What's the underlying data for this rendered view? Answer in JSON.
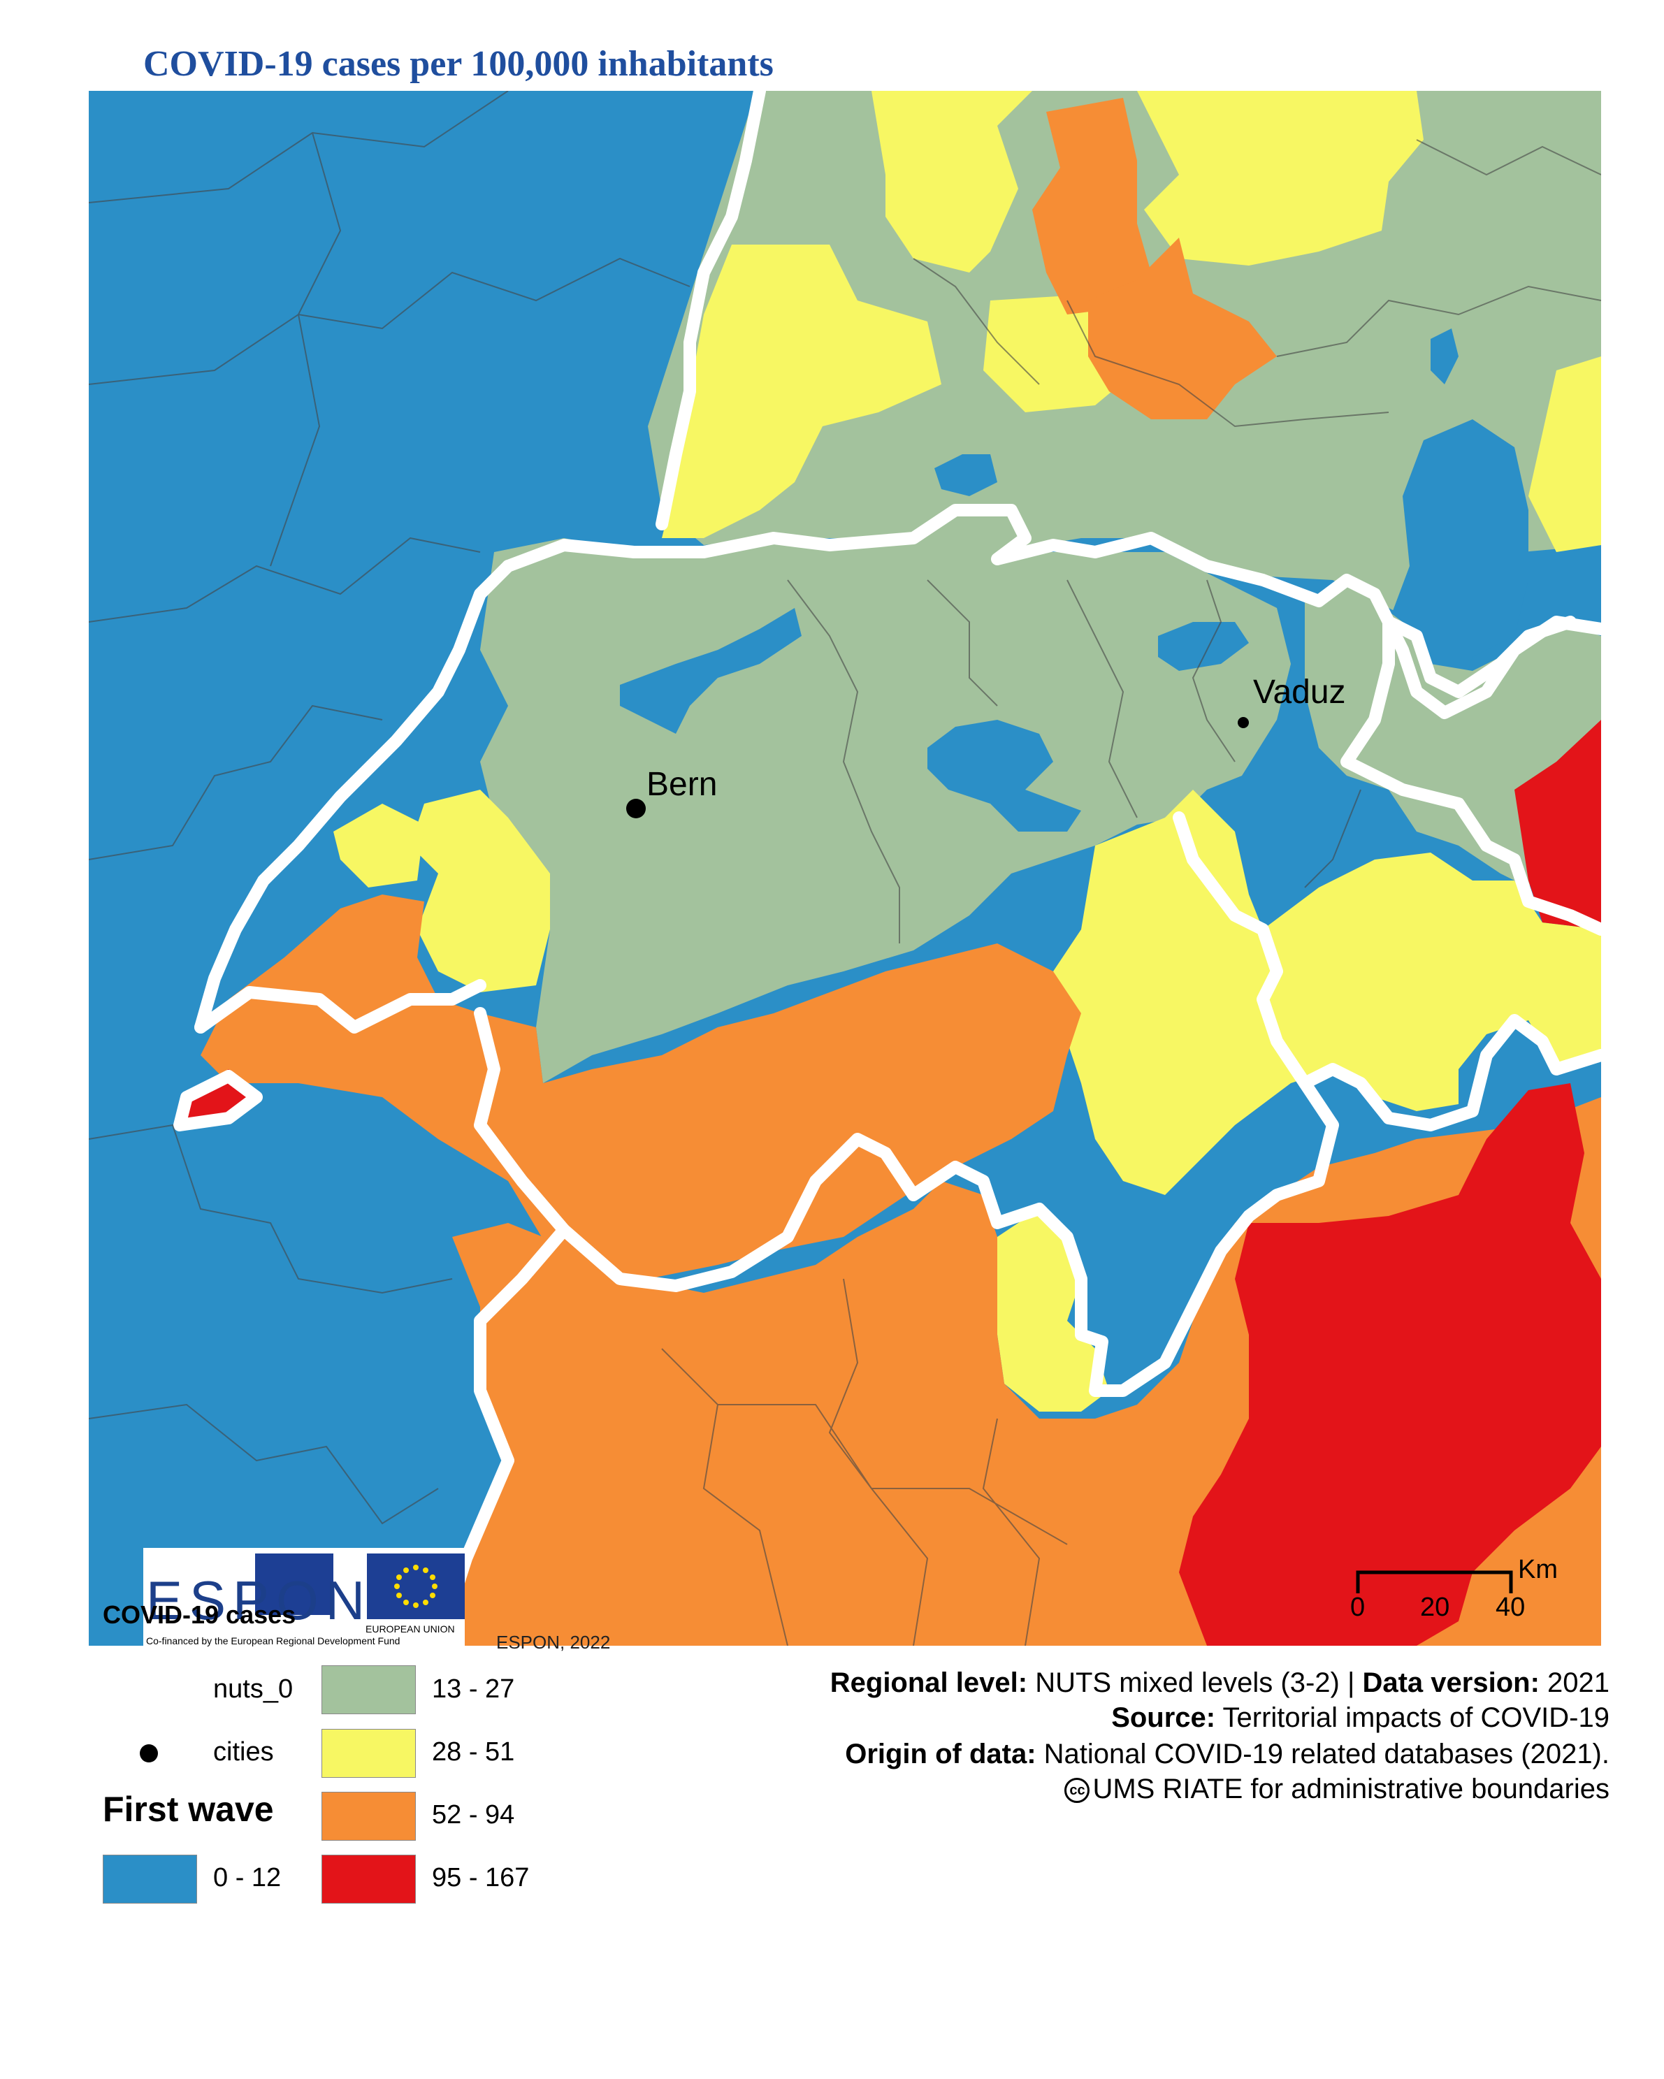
{
  "title": "COVID-19 cases per 100,000 inhabitants",
  "map": {
    "cities": [
      {
        "name": "Bern"
      },
      {
        "name": "Vaduz"
      }
    ],
    "scale_bar": {
      "unit": "Km",
      "ticks": [
        "0",
        "20",
        "40"
      ]
    },
    "colors": {
      "blue": "#2b8fc7",
      "green": "#a3c29d",
      "yellow": "#f7f763",
      "orange": "#f68d35",
      "red": "#e31419",
      "border": "#ffffff"
    }
  },
  "logos": {
    "espon_text": "ESPON",
    "eu_text": "EUROPEAN UNION",
    "cofinanced": "Co-financed by the European Regional Development Fund"
  },
  "legend": {
    "title": "COVID-19 cases",
    "copyright": "ESPON, 2022",
    "nuts0_label": "nuts_0",
    "cities_label": "cities",
    "wave_label": "First wave",
    "classes": [
      {
        "range": "0 - 12",
        "color": "#2b8fc7"
      },
      {
        "range": "13 - 27",
        "color": "#a3c29d"
      },
      {
        "range": "28 - 51",
        "color": "#f7f763"
      },
      {
        "range": "52 - 94",
        "color": "#f68d35"
      },
      {
        "range": "95 - 167",
        "color": "#e31419"
      }
    ]
  },
  "metadata": {
    "regional_level_label": "Regional level:",
    "regional_level_value": "NUTS mixed levels (3-2) |",
    "data_version_label": "Data version:",
    "data_version_value": "2021",
    "source_label": "Source:",
    "source_value": "Territorial impacts of COVID-19",
    "origin_label": "Origin of data:",
    "origin_value": "National COVID-19 related databases (2021).",
    "boundaries": "UMS RIATE for administrative boundaries"
  }
}
